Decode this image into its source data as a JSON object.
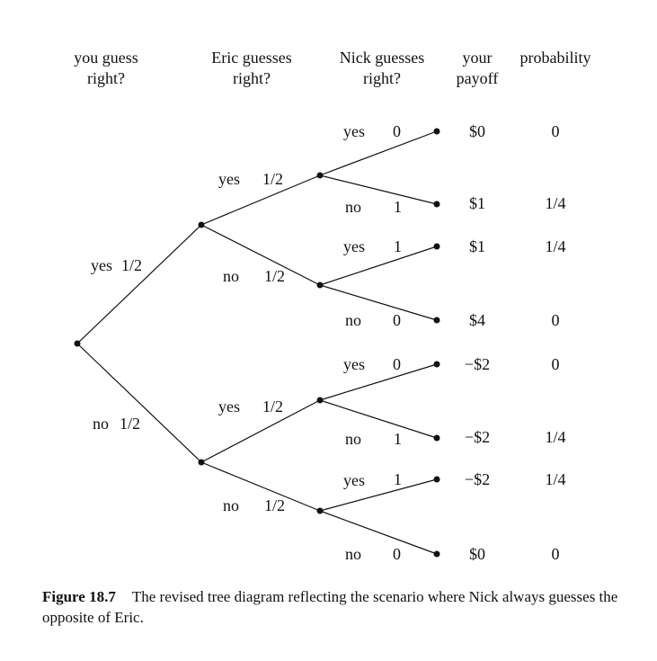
{
  "headers": {
    "you_guess": [
      "you guess",
      "right?"
    ],
    "eric_guesses": [
      "Eric guesses",
      "right?"
    ],
    "nick_guesses": [
      "Nick guesses",
      "right?"
    ],
    "your_payoff": [
      "your",
      "payoff"
    ],
    "probability": "probability"
  },
  "level1": [
    {
      "answer": "yes",
      "prob": "1/2"
    },
    {
      "answer": "no",
      "prob": "1/2"
    }
  ],
  "level2": [
    {
      "answer": "yes",
      "prob": "1/2"
    },
    {
      "answer": "no",
      "prob": "1/2"
    },
    {
      "answer": "yes",
      "prob": "1/2"
    },
    {
      "answer": "no",
      "prob": "1/2"
    }
  ],
  "outcomes": [
    {
      "answer": "yes",
      "prob": "0",
      "payoff": "$0",
      "probability": "0"
    },
    {
      "answer": "no",
      "prob": "1",
      "payoff": "$1",
      "probability": "1/4"
    },
    {
      "answer": "yes",
      "prob": "1",
      "payoff": "$1",
      "probability": "1/4"
    },
    {
      "answer": "no",
      "prob": "0",
      "payoff": "$4",
      "probability": "0"
    },
    {
      "answer": "yes",
      "prob": "0",
      "payoff": "−$2",
      "probability": "0"
    },
    {
      "answer": "no",
      "prob": "1",
      "payoff": "−$2",
      "probability": "1/4"
    },
    {
      "answer": "yes",
      "prob": "1",
      "payoff": "−$2",
      "probability": "1/4"
    },
    {
      "answer": "no",
      "prob": "0",
      "payoff": "$0",
      "probability": "0"
    }
  ],
  "caption": {
    "label": "Figure 18.7",
    "text": "The revised tree diagram reflecting the scenario where Nick always guesses the opposite of Eric."
  }
}
